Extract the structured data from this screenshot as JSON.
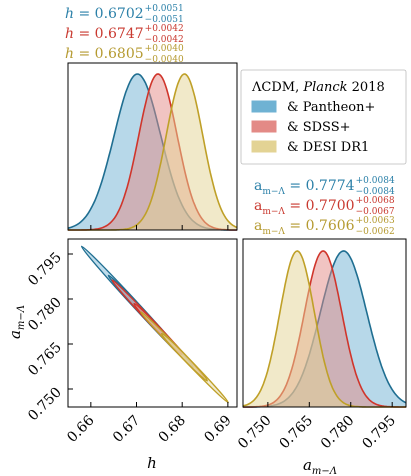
{
  "chart_data": [
    {
      "type": "density",
      "panel": "h-marginal",
      "series": [
        {
          "name": "& Pantheon+",
          "mean": 0.6702,
          "err_plus": 0.0051,
          "err_minus": 0.0051
        },
        {
          "name": "& SDSS+",
          "mean": 0.6747,
          "err_plus": 0.0042,
          "err_minus": 0.0042
        },
        {
          "name": "& DESI DR1",
          "mean": 0.6805,
          "err_plus": 0.004,
          "err_minus": 0.004
        }
      ],
      "annotations": [
        {
          "base": "h = 0.6702",
          "sup": "+0.0051",
          "sub": "−0.0051"
        },
        {
          "base": "h = 0.6747",
          "sup": "+0.0042",
          "sub": "−0.0042"
        },
        {
          "base": "h = 0.6805",
          "sup": "+0.0040",
          "sub": "−0.0040"
        }
      ]
    },
    {
      "type": "contour",
      "panel": "2d",
      "xlabel": "h",
      "ylabel": "a_{m−Λ}",
      "xlim": [
        0.655,
        0.692
      ],
      "ylim": [
        0.744,
        0.8
      ],
      "xticks": [
        "0.66",
        "0.67",
        "0.68",
        "0.69"
      ],
      "yticks": [
        "0.750",
        "0.765",
        "0.780",
        "0.795"
      ],
      "series": [
        {
          "name": "& Pantheon+",
          "x": 0.6702,
          "y": 0.7774
        },
        {
          "name": "& SDSS+",
          "x": 0.6747,
          "y": 0.77
        },
        {
          "name": "& DESI DR1",
          "x": 0.6805,
          "y": 0.7606
        }
      ]
    },
    {
      "type": "density",
      "panel": "a-marginal",
      "xlabel": "a_{m−Λ}",
      "xlim": [
        0.741,
        0.8
      ],
      "xticks": [
        "0.750",
        "0.765",
        "0.780",
        "0.795"
      ],
      "series": [
        {
          "name": "& Pantheon+",
          "mean": 0.7774,
          "err_plus": 0.0084,
          "err_minus": 0.0084
        },
        {
          "name": "& SDSS+",
          "mean": 0.77,
          "err_plus": 0.0068,
          "err_minus": 0.0067
        },
        {
          "name": "& DESI DR1",
          "mean": 0.7606,
          "err_plus": 0.0063,
          "err_minus": 0.0062
        }
      ],
      "annotations": [
        {
          "base": "a_{m−Λ} = 0.7774",
          "sup": "+0.0084",
          "sub": "−0.0084"
        },
        {
          "base": "a_{m−Λ} = 0.7700",
          "sup": "+0.0068",
          "sub": "−0.0067"
        },
        {
          "base": "a_{m−Λ} = 0.7606",
          "sup": "+0.0063",
          "sub": "−0.0062"
        }
      ]
    }
  ],
  "legend": {
    "title_prefix": "ΛCDM, ",
    "title_italic": "Planck",
    "title_suffix": " 2018",
    "entries": [
      "& Pantheon+",
      "& SDSS+",
      "& DESI DR1"
    ],
    "placement": "top-right"
  },
  "colors": {
    "pantheon_line": "#1f6e91",
    "pantheon_fill": "#6fb2d3",
    "sdss_line": "#d0352b",
    "sdss_fill": "#e38a86",
    "desi_line": "#bfa028",
    "desi_fill": "#e3d394",
    "ann_pantheon": "#2b80a8",
    "ann_sdss": "#c9392f",
    "ann_desi": "#b59a30"
  }
}
